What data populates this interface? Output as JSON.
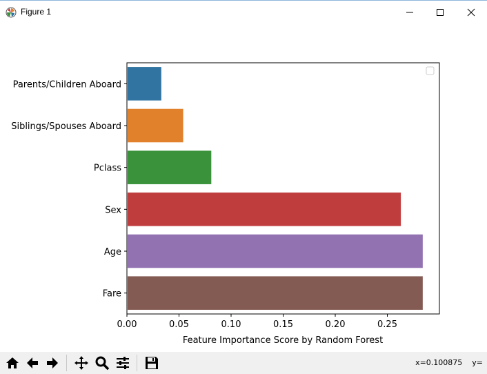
{
  "window": {
    "title": "Figure 1",
    "icons": {
      "app": "matplotlib-icon",
      "minimize": "minimize-icon",
      "maximize": "maximize-icon",
      "close": "close-icon"
    }
  },
  "colors": {
    "bars": [
      "#3274a1",
      "#e1812c",
      "#3a923a",
      "#c03d3e",
      "#9372b2",
      "#845b53"
    ]
  },
  "chart_data": {
    "type": "bar",
    "orientation": "horizontal",
    "categories": [
      "Parents/Children Aboard",
      "Siblings/Spouses Aboard",
      "Pclass",
      "Sex",
      "Age",
      "Fare"
    ],
    "values": [
      0.033,
      0.054,
      0.081,
      0.263,
      0.284,
      0.284
    ],
    "xlabel": "Feature Importance Score by Random Forest",
    "ylabel": "",
    "xlim": [
      0,
      0.3
    ],
    "xticks": [
      "0.00",
      "0.05",
      "0.10",
      "0.15",
      "0.20",
      "0.25"
    ],
    "legend": "top-right (empty)",
    "grid": false
  },
  "toolbar": {
    "buttons": [
      "home-icon",
      "back-icon",
      "forward-icon",
      "pan-icon",
      "zoom-icon",
      "configure-subplots-icon",
      "save-icon"
    ],
    "coords": "x=0.100875    y="
  }
}
